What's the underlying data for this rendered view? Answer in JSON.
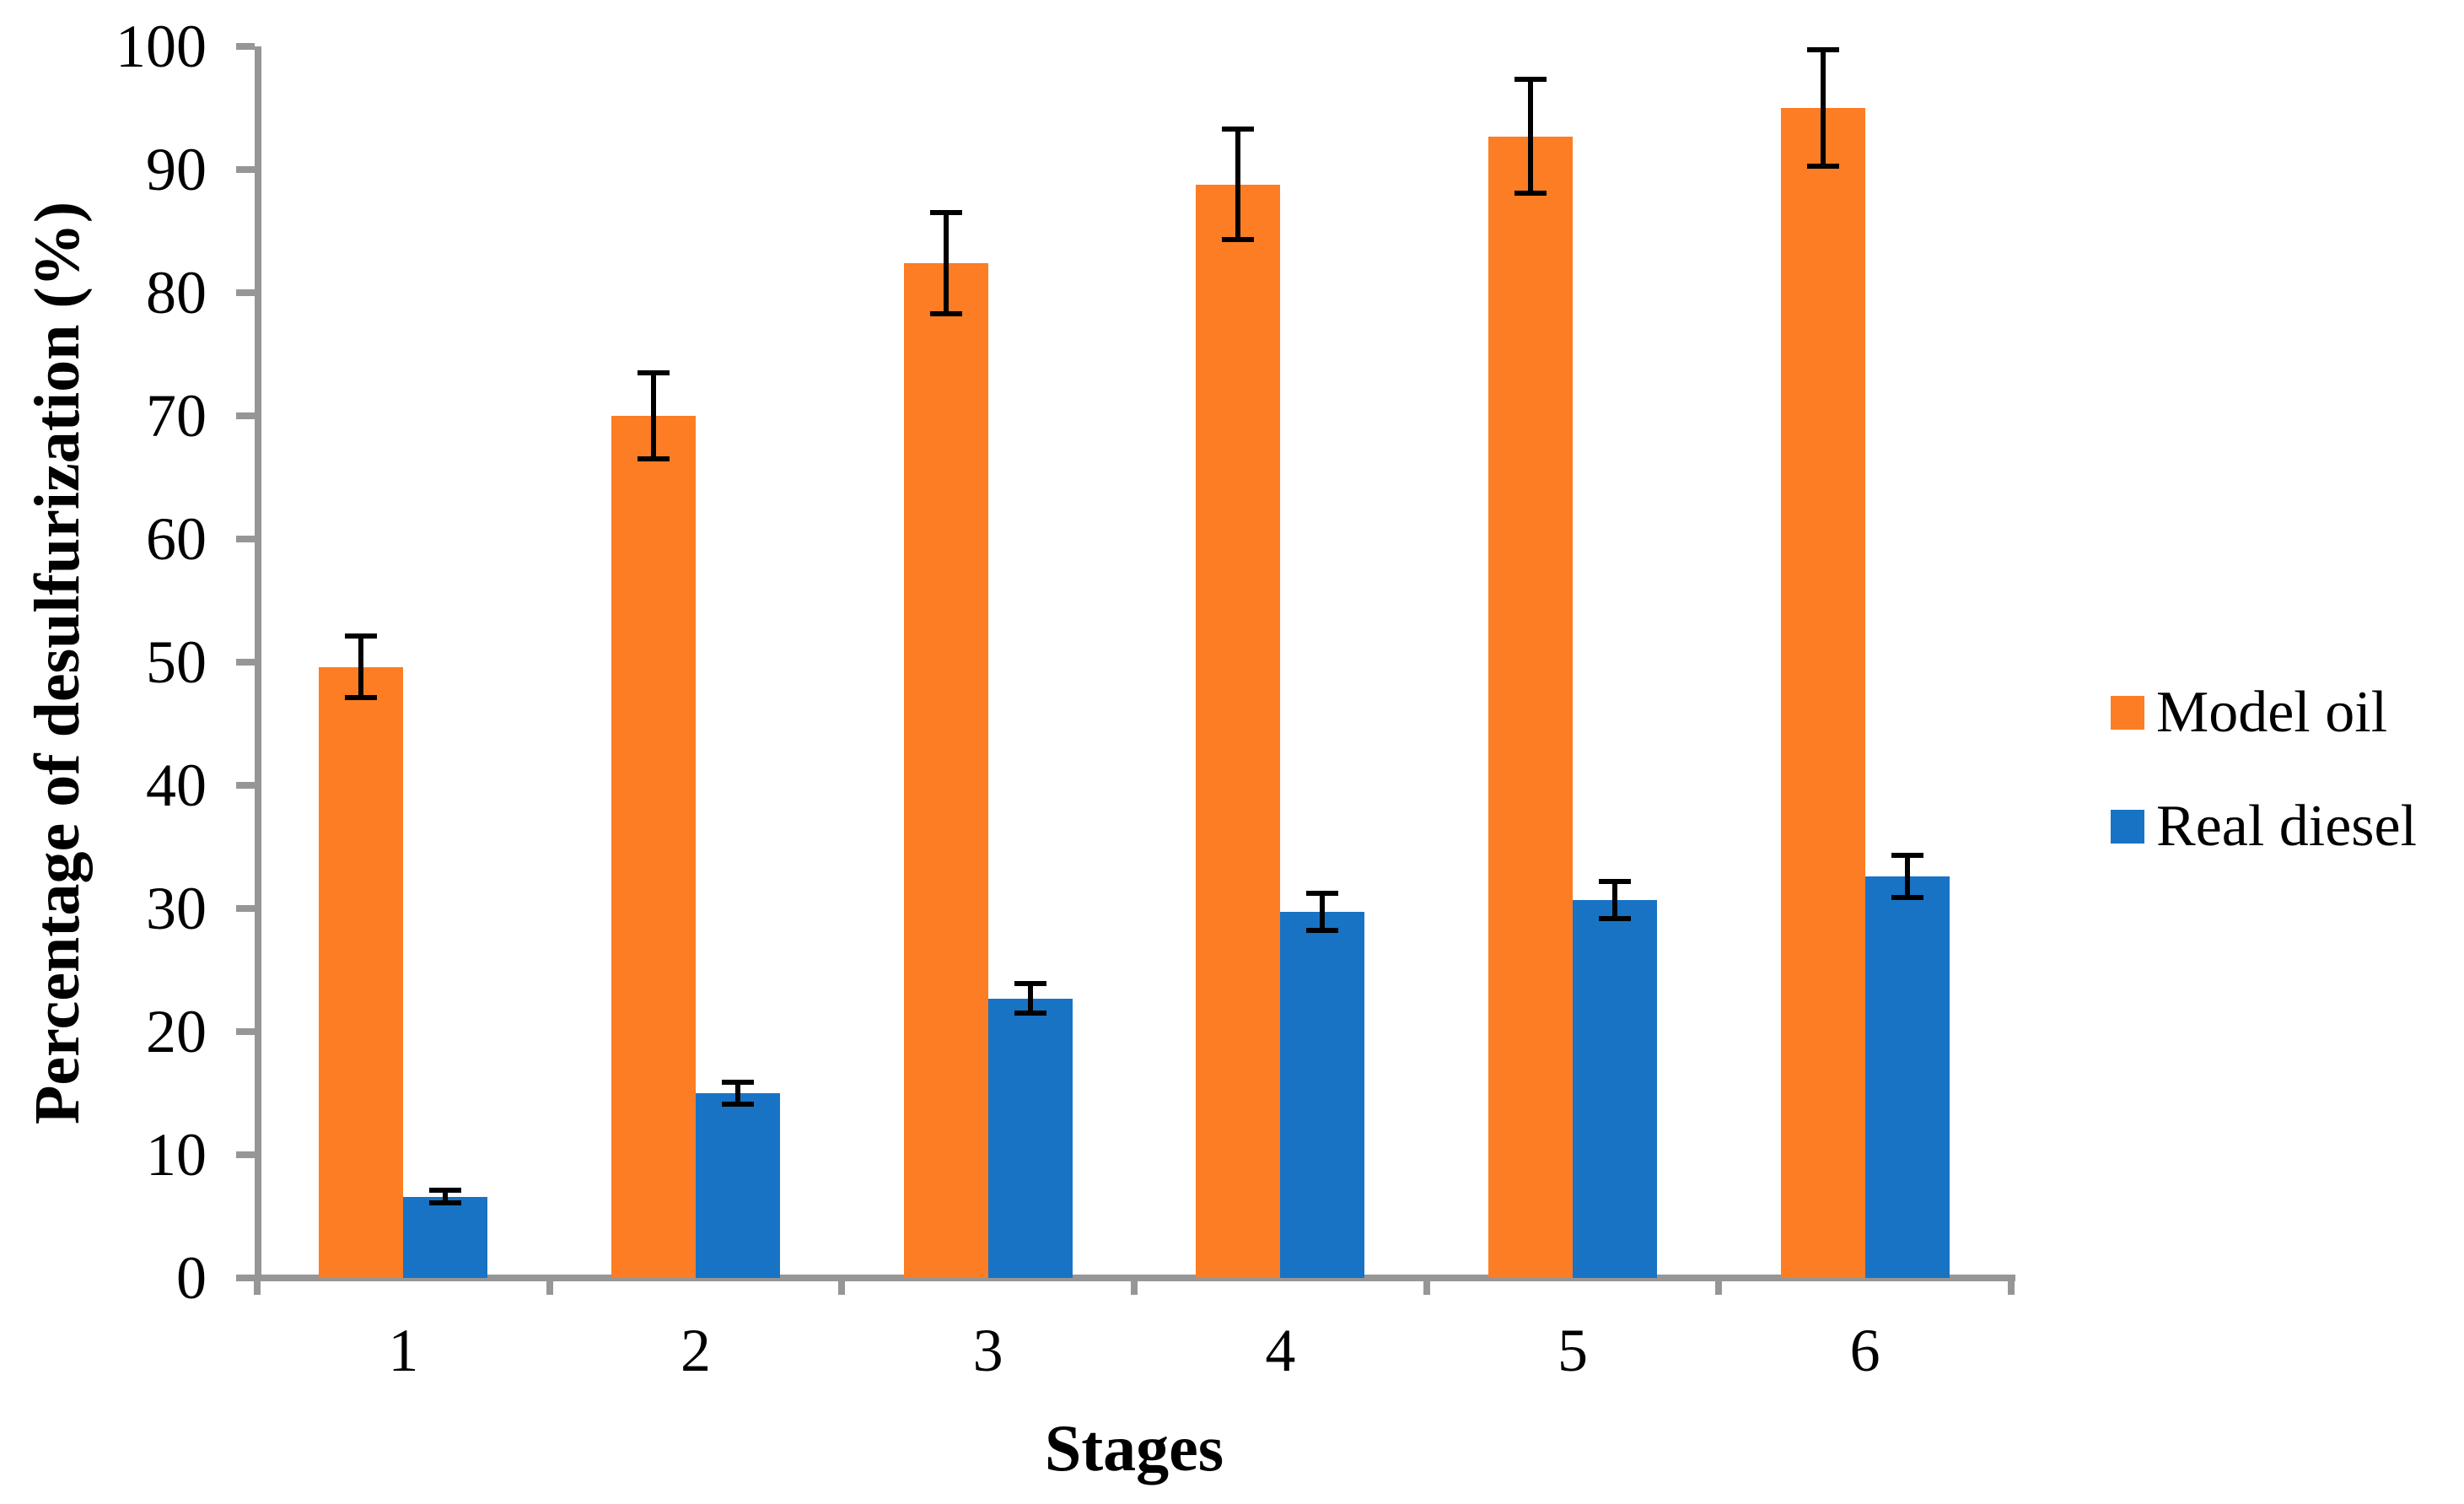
{
  "chart_data": {
    "type": "bar",
    "title": "",
    "xlabel": "Stages",
    "ylabel": "Percentage of desulfurization (%)",
    "categories": [
      "1",
      "2",
      "3",
      "4",
      "5",
      "6"
    ],
    "series": [
      {
        "name": "Model oil",
        "color": "#FC7D24",
        "values": [
          49.6,
          70.0,
          82.4,
          88.8,
          92.7,
          95.0
        ],
        "error_bars": [
          2.5,
          3.5,
          4.1,
          4.5,
          4.6,
          4.7
        ]
      },
      {
        "name": "Real diesel",
        "color": "#1873C5",
        "values": [
          6.6,
          15.0,
          22.7,
          29.7,
          30.7,
          32.6
        ],
        "error_bars": [
          0.5,
          0.9,
          1.2,
          1.5,
          1.5,
          1.7
        ]
      }
    ],
    "ylim": [
      0,
      100
    ],
    "ytick_step": 10,
    "ytick_labels": [
      "0",
      "10",
      "20",
      "30",
      "40",
      "50",
      "60",
      "70",
      "80",
      "90",
      "100"
    ],
    "grid": false,
    "legend_position": "right",
    "axis_color": "#969696",
    "error_bar_color": "#000000",
    "text_color": "#000000"
  }
}
